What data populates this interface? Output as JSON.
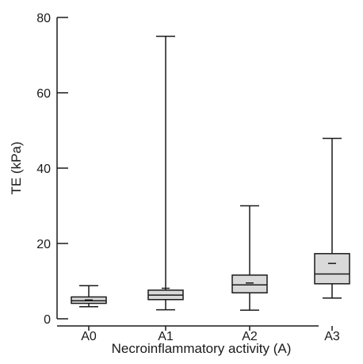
{
  "chart_data": {
    "type": "box",
    "title": "",
    "xlabel": "Necroinflammatory activity (A)",
    "ylabel": "TE (kPa)",
    "ylim": [
      0,
      80
    ],
    "yticks": [
      0,
      20,
      40,
      60,
      80
    ],
    "categories": [
      "A0",
      "A1",
      "A2",
      "A3"
    ],
    "boxes": [
      {
        "category": "A0",
        "min": 3.2,
        "q1": 4.1,
        "median": 4.8,
        "q3": 5.8,
        "max": 8.8,
        "mean": 5.0
      },
      {
        "category": "A1",
        "min": 2.4,
        "q1": 5.1,
        "median": 6.3,
        "q3": 7.6,
        "max": 75.0,
        "mean": 8.1
      },
      {
        "category": "A2",
        "min": 2.3,
        "q1": 6.9,
        "median": 9.0,
        "q3": 11.6,
        "max": 30.0,
        "mean": 9.5
      },
      {
        "category": "A3",
        "min": 5.5,
        "q1": 9.3,
        "median": 11.9,
        "q3": 17.3,
        "max": 47.9,
        "mean": 14.7
      }
    ],
    "grid": false,
    "legend": "none"
  },
  "colors": {
    "box_fill": "#d9d9d9",
    "stroke": "#1a1a1a"
  }
}
